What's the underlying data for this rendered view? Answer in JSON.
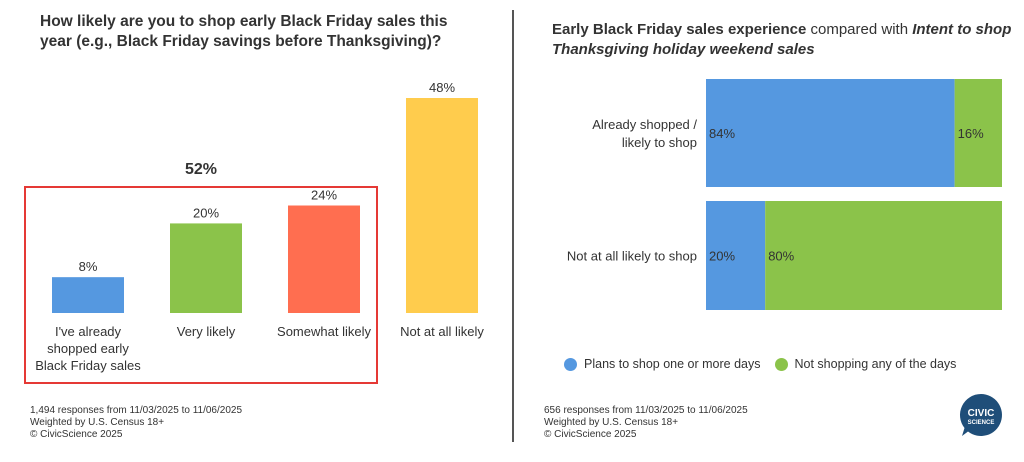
{
  "left": {
    "title": "How likely are you to shop early Black Friday sales this year (e.g., Black Friday savings before Thanksgiving)?",
    "highlight_label": "52%",
    "footer": [
      "1,494 responses from 11/03/2025 to 11/06/2025",
      "Weighted by U.S. Census 18+",
      "© CivicScience 2025"
    ]
  },
  "right": {
    "title_bold": "Early Black Friday sales experience",
    "title_normal": " compared with ",
    "title_italic": "Intent to shop Thanksgiving holiday weekend sales",
    "footer": [
      "656 responses from 11/03/2025 to 11/06/2025",
      "Weighted by U.S. Census 18+",
      "© CivicScience 2025"
    ],
    "legend": [
      {
        "label": "Plans to shop one or more days",
        "color": "#5598E0"
      },
      {
        "label": "Not shopping any of the days",
        "color": "#8BC34A"
      }
    ]
  },
  "logo": {
    "line1": "CIVIC",
    "line2": "SCIENCE",
    "color": "#1F4E79"
  },
  "chart_data": [
    {
      "type": "bar",
      "title": "How likely are you to shop early Black Friday sales this year (e.g., Black Friday savings before Thanksgiving)?",
      "categories": [
        [
          "I've already",
          "shopped early",
          "Black Friday sales"
        ],
        [
          "Very likely"
        ],
        [
          "Somewhat likely"
        ],
        [
          "Not at all likely"
        ]
      ],
      "values": [
        8,
        20,
        24,
        48
      ],
      "value_labels": [
        "8%",
        "20%",
        "24%",
        "48%"
      ],
      "colors": [
        "#5598E0",
        "#8BC34A",
        "#FF6E50",
        "#FFCC4D"
      ],
      "ylim": [
        0,
        48
      ],
      "annotation": {
        "text": "52%",
        "spans_categories": [
          0,
          1,
          2
        ],
        "box_color": "#E53935"
      }
    },
    {
      "type": "bar",
      "orientation": "horizontal",
      "stacked": true,
      "categories": [
        [
          "Already shopped /",
          "likely to shop"
        ],
        [
          "Not at all likely to shop"
        ]
      ],
      "series": [
        {
          "name": "Plans to shop one or more days",
          "values": [
            84,
            20
          ],
          "labels": [
            "84%",
            "20%"
          ],
          "color": "#5598E0"
        },
        {
          "name": "Not shopping any of the days",
          "values": [
            16,
            80
          ],
          "labels": [
            "16%",
            "80%"
          ],
          "color": "#8BC34A"
        }
      ],
      "xlim": [
        0,
        100
      ]
    }
  ]
}
